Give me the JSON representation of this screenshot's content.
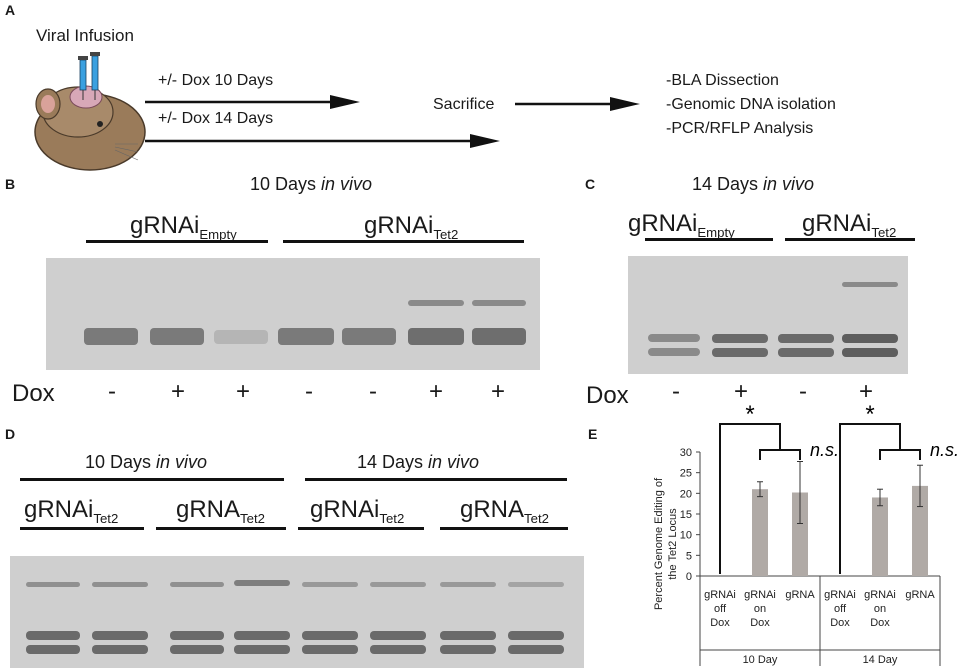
{
  "panels": {
    "A": "A",
    "B": "B",
    "C": "C",
    "D": "D",
    "E": "E"
  },
  "panel_a": {
    "title": "Viral Infusion",
    "arrow1": "+/- Dox 10 Days",
    "arrow2": "+/- Dox 14 Days",
    "middle": "Sacrifice",
    "steps": [
      "-BLA Dissection",
      "-Genomic DNA isolation",
      "-PCR/RFLP Analysis"
    ]
  },
  "panel_b": {
    "title_main": "10 Days ",
    "title_italic": "in vivo",
    "group1_main": "gRNAi",
    "group1_sub": "Empty",
    "group2_main": "gRNAi",
    "group2_sub": "Tet2",
    "dox_label": "Dox",
    "dox_signs": [
      "-",
      "+",
      "+",
      "-",
      "-",
      "+",
      "+"
    ]
  },
  "panel_c": {
    "title_main": "14 Days ",
    "title_italic": "in vivo",
    "group1_main": "gRNAi",
    "group1_sub": "Empty",
    "group2_main": "gRNAi",
    "group2_sub": "Tet2",
    "dox_label": "Dox",
    "dox_signs": [
      "-",
      "+",
      "-",
      "+"
    ]
  },
  "panel_d": {
    "left_title_main": "10 Days ",
    "left_title_italic": "in vivo",
    "right_title_main": "14 Days ",
    "right_title_italic": "in vivo",
    "groups": [
      {
        "main": "gRNAi",
        "sub": "Tet2"
      },
      {
        "main": "gRNA",
        "sub": "Tet2"
      },
      {
        "main": "gRNAi",
        "sub": "Tet2"
      },
      {
        "main": "gRNA",
        "sub": "Tet2"
      }
    ]
  },
  "chart_data": {
    "type": "bar",
    "ylabel": "Percent Genome Editing of the Tet2 Locus",
    "ylim": [
      0,
      30
    ],
    "yticks": [
      0,
      5,
      10,
      15,
      20,
      25,
      30
    ],
    "categories": [
      {
        "label": [
          "gRNAi",
          "off",
          "Dox"
        ],
        "group": "10 Day",
        "value": 0,
        "error": 0
      },
      {
        "label": [
          "gRNAi",
          "on",
          "Dox"
        ],
        "group": "10 Day",
        "value": 21,
        "error": 1.8
      },
      {
        "label": [
          "gRNA"
        ],
        "group": "10 Day",
        "value": 20.2,
        "error": 7.5
      },
      {
        "label": [
          "gRNAi",
          "off",
          "Dox"
        ],
        "group": "14 Day",
        "value": 0,
        "error": 0
      },
      {
        "label": [
          "gRNAi",
          "on",
          "Dox"
        ],
        "group": "14 Day",
        "value": 19,
        "error": 2
      },
      {
        "label": [
          "gRNA"
        ],
        "group": "14 Day",
        "value": 21.8,
        "error": 5
      }
    ],
    "groups": [
      "10 Day",
      "14 Day"
    ],
    "annotations": {
      "significant": "*",
      "not_significant": "n.s."
    },
    "bar_color": "#b0aaa6"
  }
}
